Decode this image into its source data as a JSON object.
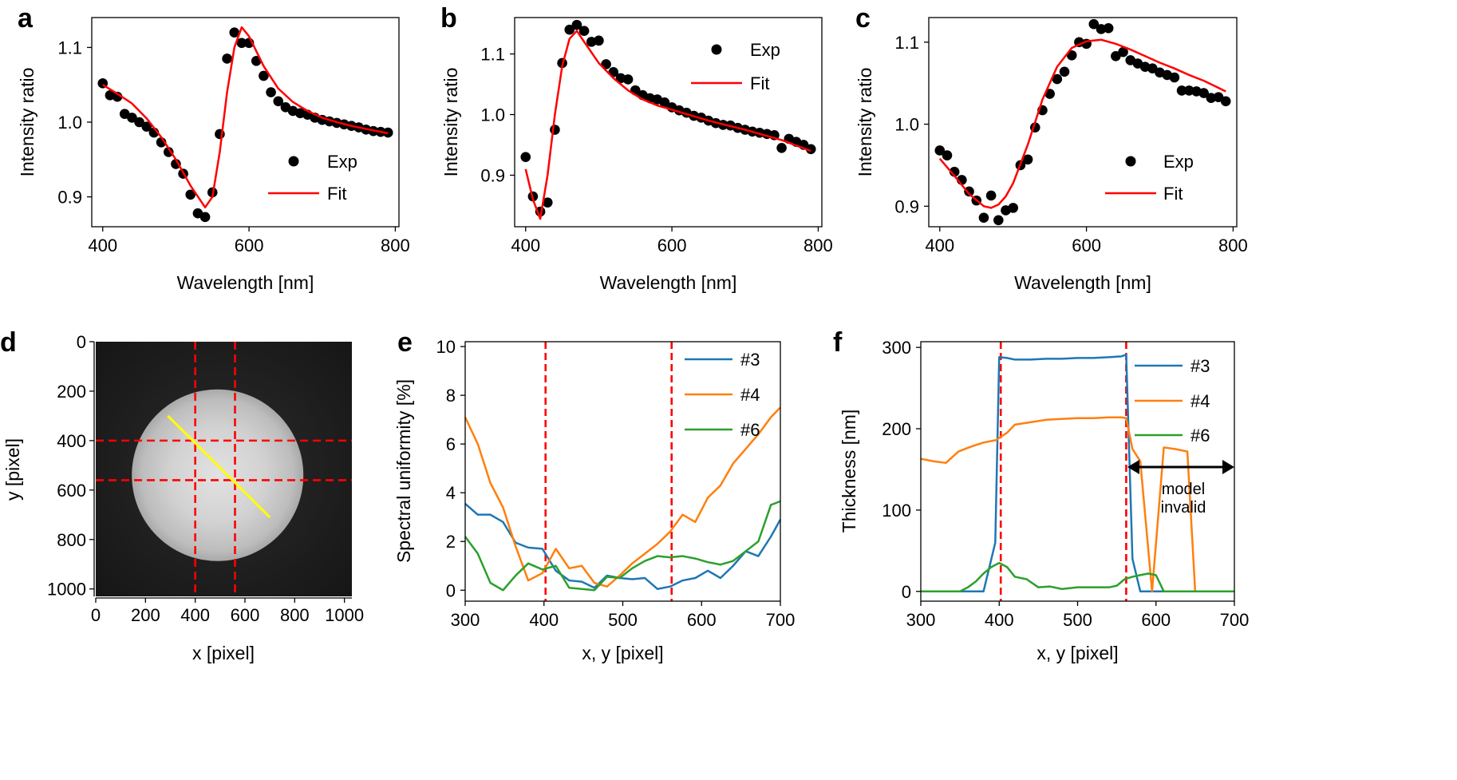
{
  "chart_data": [
    {
      "panel": "a",
      "type": "scatter",
      "xlabel": "Wavelength [nm]",
      "ylabel": "Intensity ratio",
      "xlim": [
        385,
        805
      ],
      "ylim": [
        0.86,
        1.14
      ],
      "xticks": [
        400,
        600,
        800
      ],
      "yticks": [
        0.9,
        1.0,
        1.1
      ],
      "ytick_format": "0.0",
      "legend": {
        "placement": "lower-right",
        "entries": [
          "Exp",
          "Fit"
        ]
      },
      "series": [
        {
          "name": "Exp",
          "kind": "scatter",
          "color": "#000000",
          "x": [
            400,
            410,
            420,
            430,
            440,
            450,
            460,
            470,
            480,
            490,
            500,
            510,
            520,
            530,
            540,
            550,
            560,
            570,
            580,
            590,
            600,
            610,
            620,
            630,
            640,
            650,
            660,
            670,
            680,
            690,
            700,
            710,
            720,
            730,
            740,
            750,
            760,
            770,
            780,
            790
          ],
          "y": [
            1.052,
            1.036,
            1.034,
            1.011,
            1.006,
            1.0,
            0.994,
            0.986,
            0.973,
            0.96,
            0.944,
            0.931,
            0.903,
            0.878,
            0.873,
            0.906,
            0.984,
            1.085,
            1.12,
            1.106,
            1.106,
            1.082,
            1.062,
            1.04,
            1.028,
            1.02,
            1.015,
            1.012,
            1.01,
            1.006,
            1.003,
            1.001,
            0.999,
            0.997,
            0.995,
            0.993,
            0.99,
            0.988,
            0.987,
            0.986
          ]
        },
        {
          "name": "Fit",
          "kind": "line",
          "color": "#ff0000",
          "x": [
            400,
            420,
            440,
            460,
            480,
            500,
            520,
            540,
            550,
            560,
            570,
            580,
            590,
            600,
            620,
            640,
            660,
            680,
            700,
            720,
            740,
            760,
            790
          ],
          "y": [
            1.05,
            1.038,
            1.025,
            1.005,
            0.98,
            0.95,
            0.915,
            0.886,
            0.9,
            0.96,
            1.04,
            1.1,
            1.127,
            1.115,
            1.075,
            1.045,
            1.027,
            1.015,
            1.006,
            1.0,
            0.995,
            0.991,
            0.985
          ]
        }
      ]
    },
    {
      "panel": "b",
      "type": "scatter",
      "xlabel": "Wavelength [nm]",
      "ylabel": "Intensity ratio",
      "xlim": [
        385,
        805
      ],
      "ylim": [
        0.815,
        1.16
      ],
      "xticks": [
        400,
        600,
        800
      ],
      "yticks": [
        0.9,
        1.0,
        1.1
      ],
      "ytick_format": "0.0",
      "legend": {
        "placement": "upper-right",
        "entries": [
          "Exp",
          "Fit"
        ]
      },
      "series": [
        {
          "name": "Exp",
          "kind": "scatter",
          "color": "#000000",
          "x": [
            400,
            410,
            420,
            430,
            440,
            450,
            460,
            470,
            480,
            490,
            500,
            510,
            520,
            530,
            540,
            550,
            560,
            570,
            580,
            590,
            600,
            610,
            620,
            630,
            640,
            650,
            660,
            670,
            680,
            690,
            700,
            710,
            720,
            730,
            740,
            750,
            760,
            770,
            780,
            790
          ],
          "y": [
            0.93,
            0.865,
            0.84,
            0.855,
            0.975,
            1.085,
            1.14,
            1.148,
            1.138,
            1.12,
            1.122,
            1.083,
            1.07,
            1.06,
            1.058,
            1.04,
            1.032,
            1.027,
            1.025,
            1.02,
            1.012,
            1.007,
            1.003,
            0.998,
            0.995,
            0.99,
            0.986,
            0.983,
            0.982,
            0.978,
            0.975,
            0.972,
            0.97,
            0.968,
            0.966,
            0.945,
            0.96,
            0.955,
            0.95,
            0.943
          ]
        },
        {
          "name": "Fit",
          "kind": "line",
          "color": "#ff0000",
          "x": [
            400,
            410,
            420,
            430,
            440,
            450,
            460,
            470,
            480,
            500,
            520,
            540,
            560,
            580,
            600,
            650,
            700,
            750,
            790
          ],
          "y": [
            0.91,
            0.86,
            0.828,
            0.9,
            1.0,
            1.08,
            1.125,
            1.138,
            1.12,
            1.085,
            1.06,
            1.04,
            1.025,
            1.015,
            1.008,
            0.99,
            0.975,
            0.958,
            0.94
          ]
        }
      ]
    },
    {
      "panel": "c",
      "type": "scatter",
      "xlabel": "Wavelength [nm]",
      "ylabel": "Intensity ratio",
      "xlim": [
        385,
        805
      ],
      "ylim": [
        0.875,
        1.13
      ],
      "xticks": [
        400,
        600,
        800
      ],
      "yticks": [
        0.9,
        1.0,
        1.1
      ],
      "ytick_format": "0.0",
      "legend": {
        "placement": "lower-right",
        "entries": [
          "Exp",
          "Fit"
        ]
      },
      "series": [
        {
          "name": "Exp",
          "kind": "scatter",
          "color": "#000000",
          "x": [
            400,
            410,
            420,
            430,
            440,
            450,
            460,
            470,
            480,
            490,
            500,
            510,
            520,
            530,
            540,
            550,
            560,
            570,
            580,
            590,
            600,
            610,
            620,
            630,
            640,
            650,
            660,
            670,
            680,
            690,
            700,
            710,
            720,
            730,
            740,
            750,
            760,
            770,
            780,
            790
          ],
          "y": [
            0.968,
            0.962,
            0.942,
            0.932,
            0.918,
            0.907,
            0.886,
            0.913,
            0.883,
            0.895,
            0.898,
            0.95,
            0.957,
            0.996,
            1.017,
            1.037,
            1.055,
            1.064,
            1.084,
            1.1,
            1.098,
            1.122,
            1.116,
            1.117,
            1.083,
            1.088,
            1.078,
            1.074,
            1.07,
            1.068,
            1.063,
            1.06,
            1.057,
            1.041,
            1.041,
            1.04,
            1.038,
            1.032,
            1.033,
            1.028
          ]
        },
        {
          "name": "Fit",
          "kind": "line",
          "color": "#ff0000",
          "x": [
            400,
            420,
            440,
            460,
            470,
            480,
            490,
            500,
            520,
            540,
            560,
            580,
            600,
            620,
            640,
            660,
            680,
            700,
            720,
            740,
            760,
            790
          ],
          "y": [
            0.958,
            0.937,
            0.915,
            0.9,
            0.898,
            0.902,
            0.912,
            0.928,
            0.975,
            1.03,
            1.07,
            1.093,
            1.101,
            1.103,
            1.098,
            1.091,
            1.083,
            1.075,
            1.068,
            1.06,
            1.053,
            1.04
          ]
        }
      ]
    },
    {
      "panel": "d",
      "type": "image",
      "xlabel": "x [pixel]",
      "ylabel": "y [pixel]",
      "xlim": [
        0,
        1030
      ],
      "ylim": [
        1030,
        0
      ],
      "xticks": [
        0,
        200,
        400,
        600,
        800,
        1000
      ],
      "yticks": [
        0,
        200,
        400,
        600,
        800,
        1000
      ],
      "image": {
        "description": "grayscale microscope image of a bright circular sample",
        "disk_center": [
          490,
          540
        ],
        "disk_radius": 345
      },
      "overlays": [
        {
          "kind": "vline",
          "value": 400,
          "color": "#ff0000",
          "style": "dashed"
        },
        {
          "kind": "vline",
          "value": 560,
          "color": "#ff0000",
          "style": "dashed"
        },
        {
          "kind": "hline",
          "value": 400,
          "color": "#ff0000",
          "style": "dashed"
        },
        {
          "kind": "hline",
          "value": 560,
          "color": "#ff0000",
          "style": "dashed"
        },
        {
          "kind": "segment",
          "from": [
            290,
            300
          ],
          "to": [
            700,
            710
          ],
          "color": "#ffff00"
        }
      ]
    },
    {
      "panel": "e",
      "type": "line",
      "xlabel": "x, y [pixel]",
      "ylabel": "Spectral uniformity [%]",
      "xlim": [
        300,
        700
      ],
      "ylim": [
        -0.45,
        10.2
      ],
      "xticks": [
        300,
        400,
        500,
        600,
        700
      ],
      "yticks": [
        0,
        2,
        4,
        6,
        8,
        10
      ],
      "legend": {
        "placement": "upper-right",
        "entries": [
          "#3",
          "#4",
          "#6"
        ]
      },
      "vlines": [
        402,
        562
      ],
      "series": [
        {
          "name": "#3",
          "color": "#1f77b4",
          "x": [
            300,
            316,
            332,
            348,
            364,
            380,
            398,
            415,
            432,
            448,
            464,
            480,
            496,
            512,
            528,
            544,
            560,
            576,
            592,
            608,
            624,
            640,
            656,
            672,
            688,
            700
          ],
          "y": [
            3.55,
            3.1,
            3.1,
            2.8,
            1.95,
            1.75,
            1.7,
            0.8,
            0.4,
            0.35,
            0.1,
            0.6,
            0.5,
            0.45,
            0.5,
            0.05,
            0.15,
            0.4,
            0.5,
            0.8,
            0.5,
            1.0,
            1.6,
            1.4,
            2.2,
            2.9
          ]
        },
        {
          "name": "#4",
          "color": "#ff7f0e",
          "x": [
            300,
            316,
            332,
            348,
            364,
            380,
            398,
            415,
            432,
            448,
            464,
            480,
            496,
            512,
            528,
            544,
            560,
            576,
            592,
            608,
            624,
            640,
            656,
            672,
            688,
            700
          ],
          "y": [
            7.1,
            6.0,
            4.4,
            3.4,
            1.8,
            0.4,
            0.7,
            1.7,
            0.9,
            1.0,
            0.3,
            0.15,
            0.6,
            1.1,
            1.5,
            1.9,
            2.4,
            3.1,
            2.8,
            3.8,
            4.3,
            5.2,
            5.8,
            6.4,
            7.1,
            7.5
          ]
        },
        {
          "name": "#6",
          "color": "#2ca02c",
          "x": [
            300,
            316,
            332,
            348,
            364,
            380,
            398,
            415,
            432,
            448,
            464,
            480,
            496,
            512,
            528,
            544,
            560,
            576,
            592,
            608,
            624,
            640,
            656,
            672,
            688,
            700
          ],
          "y": [
            2.2,
            1.5,
            0.3,
            0.0,
            0.6,
            1.1,
            0.85,
            1.0,
            0.1,
            0.05,
            0.0,
            0.55,
            0.5,
            0.9,
            1.2,
            1.4,
            1.35,
            1.4,
            1.3,
            1.15,
            1.05,
            1.2,
            1.6,
            2.0,
            3.5,
            3.65
          ]
        }
      ]
    },
    {
      "panel": "f",
      "type": "line",
      "xlabel": "x, y [pixel]",
      "ylabel": "Thickness [nm]",
      "xlim": [
        300,
        700
      ],
      "ylim": [
        -12,
        307
      ],
      "xticks": [
        300,
        400,
        500,
        600,
        700
      ],
      "yticks": [
        0,
        100,
        200,
        300
      ],
      "legend": {
        "placement": "upper-right",
        "entries": [
          "#3",
          "#4",
          "#6"
        ]
      },
      "vlines": [
        402,
        562
      ],
      "note": "model invalid",
      "series": [
        {
          "name": "#3",
          "color": "#1f77b4",
          "x": [
            300,
            350,
            380,
            395,
            400,
            410,
            420,
            440,
            460,
            480,
            500,
            520,
            540,
            556,
            562,
            570,
            580,
            590,
            600,
            700
          ],
          "y": [
            0,
            0,
            0,
            60,
            288,
            287,
            285,
            285,
            286,
            286,
            287,
            287,
            288,
            289,
            291,
            40,
            0,
            0,
            0,
            0
          ]
        },
        {
          "name": "#4",
          "color": "#ff7f0e",
          "x": [
            300,
            316,
            332,
            348,
            364,
            380,
            396,
            402,
            410,
            420,
            440,
            460,
            480,
            500,
            520,
            540,
            556,
            562,
            570,
            580,
            595,
            610,
            625,
            640,
            650,
            700
          ],
          "y": [
            163,
            160,
            158,
            172,
            178,
            183,
            186,
            190,
            195,
            205,
            208,
            211,
            212,
            213,
            213,
            214,
            214,
            213,
            175,
            160,
            0,
            177,
            175,
            172,
            0,
            0
          ]
        },
        {
          "name": "#6",
          "color": "#2ca02c",
          "x": [
            300,
            350,
            360,
            370,
            380,
            390,
            400,
            410,
            420,
            435,
            450,
            465,
            480,
            500,
            520,
            540,
            550,
            560,
            570,
            580,
            590,
            600,
            610,
            700
          ],
          "y": [
            0,
            0,
            5,
            12,
            22,
            30,
            35,
            30,
            18,
            15,
            5,
            6,
            3,
            5,
            5,
            5,
            7,
            15,
            18,
            20,
            22,
            20,
            0,
            0
          ]
        }
      ]
    }
  ],
  "panel_labels": [
    "a",
    "b",
    "c",
    "d",
    "e",
    "f"
  ],
  "legend_labels": {
    "exp": "Exp",
    "fit": "Fit",
    "s3": "#3",
    "s4": "#4",
    "s6": "#6"
  },
  "annotation": {
    "line1": "model",
    "line2": "invalid"
  }
}
